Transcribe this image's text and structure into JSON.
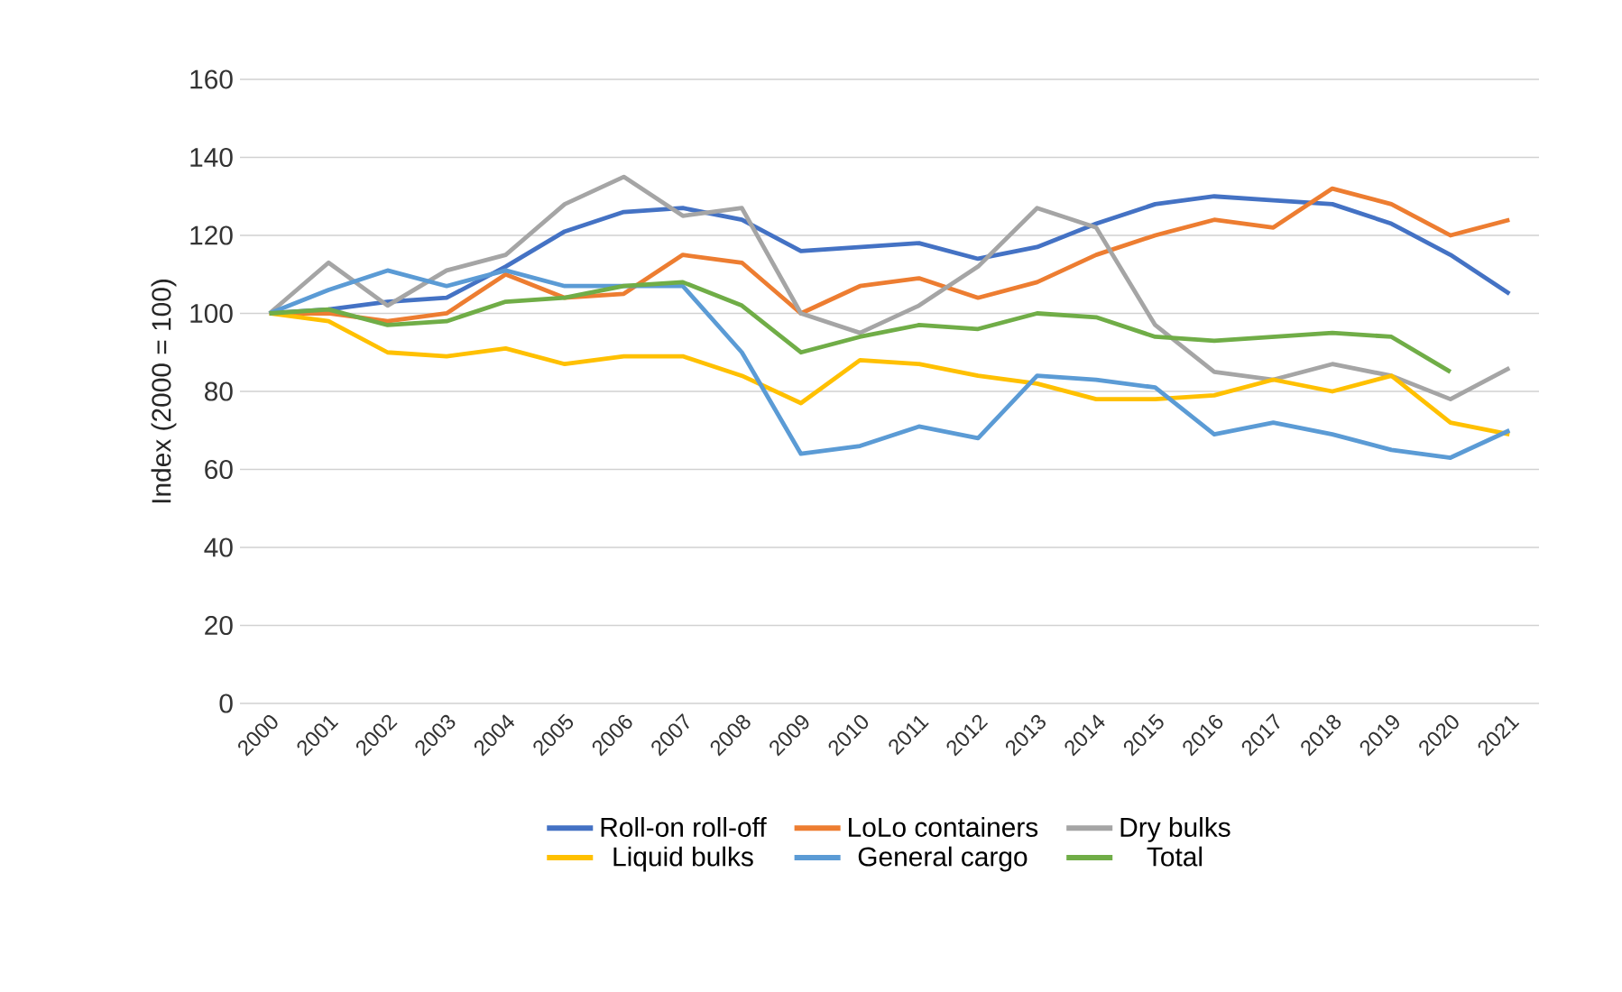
{
  "chart_data": {
    "type": "line",
    "ylabel": "Index (2000 = 100)",
    "categories": [
      "2000",
      "2001",
      "2002",
      "2003",
      "2004",
      "2005",
      "2006",
      "2007",
      "2008",
      "2009",
      "2010",
      "2011",
      "2012",
      "2013",
      "2014",
      "2015",
      "2016",
      "2017",
      "2018",
      "2019",
      "2020",
      "2021"
    ],
    "series": [
      {
        "name": "Roll-on roll-off",
        "color": "#4472c4",
        "values": [
          100,
          101,
          103,
          104,
          112,
          121,
          126,
          127,
          124,
          116,
          117,
          118,
          114,
          117,
          123,
          128,
          130,
          129,
          128,
          123,
          115,
          105
        ]
      },
      {
        "name": "LoLo containers",
        "color": "#ed7d31",
        "values": [
          100,
          100,
          98,
          100,
          110,
          104,
          105,
          115,
          113,
          100,
          107,
          109,
          104,
          108,
          115,
          120,
          124,
          122,
          132,
          128,
          120,
          124
        ]
      },
      {
        "name": "Dry bulks",
        "color": "#a5a5a5",
        "values": [
          100,
          113,
          102,
          111,
          115,
          128,
          135,
          125,
          127,
          100,
          95,
          102,
          112,
          127,
          122,
          97,
          85,
          83,
          87,
          84,
          78,
          86
        ]
      },
      {
        "name": "Liquid bulks",
        "color": "#ffc000",
        "values": [
          100,
          98,
          90,
          89,
          91,
          87,
          89,
          89,
          84,
          77,
          88,
          87,
          84,
          82,
          78,
          78,
          79,
          83,
          80,
          84,
          72,
          69
        ]
      },
      {
        "name": "General cargo",
        "color": "#5b9bd5",
        "values": [
          100,
          106,
          111,
          107,
          111,
          107,
          107,
          107,
          90,
          64,
          66,
          71,
          68,
          84,
          83,
          81,
          69,
          72,
          69,
          65,
          63,
          70
        ]
      },
      {
        "name": "Total",
        "color": "#70ad47",
        "values": [
          100,
          101,
          97,
          98,
          103,
          104,
          107,
          108,
          102,
          90,
          94,
          97,
          96,
          100,
          99,
          94,
          93,
          94,
          95,
          94,
          85,
          null
        ]
      }
    ],
    "ylim": [
      0,
      160
    ],
    "yticks": [
      0,
      20,
      40,
      60,
      80,
      100,
      120,
      140,
      160
    ],
    "grid": "y",
    "legend": "bottom",
    "marker": "none",
    "line_style": "solid"
  }
}
